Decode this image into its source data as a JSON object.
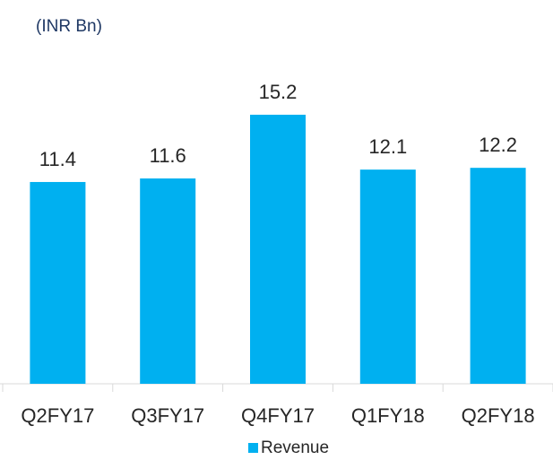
{
  "chart_data": {
    "type": "bar",
    "title": "(INR Bn)",
    "categories": [
      "Q2FY17",
      "Q3FY17",
      "Q4FY17",
      "Q1FY18",
      "Q2FY18"
    ],
    "series": [
      {
        "name": "Revenue",
        "color": "#00b0f0",
        "values": [
          11.4,
          11.6,
          15.2,
          12.1,
          12.2
        ]
      }
    ]
  }
}
